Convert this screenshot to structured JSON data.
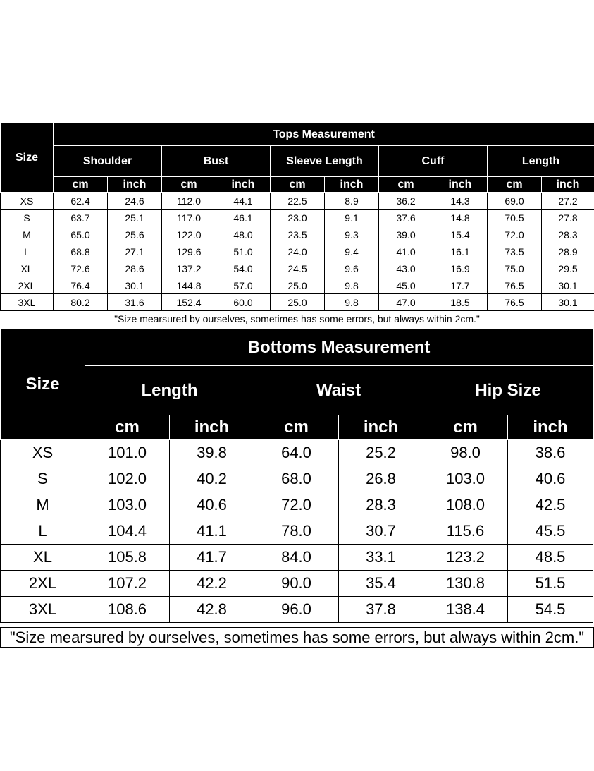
{
  "tops": {
    "title": "Tops Measurement",
    "size_label": "Size",
    "groups": [
      "Shoulder",
      "Bust",
      "Sleeve Length",
      "Cuff",
      "Length"
    ],
    "units": [
      "cm",
      "inch"
    ],
    "rows": [
      {
        "size": "XS",
        "values": [
          "62.4",
          "24.6",
          "112.0",
          "44.1",
          "22.5",
          "8.9",
          "36.2",
          "14.3",
          "69.0",
          "27.2"
        ]
      },
      {
        "size": "S",
        "values": [
          "63.7",
          "25.1",
          "117.0",
          "46.1",
          "23.0",
          "9.1",
          "37.6",
          "14.8",
          "70.5",
          "27.8"
        ]
      },
      {
        "size": "M",
        "values": [
          "65.0",
          "25.6",
          "122.0",
          "48.0",
          "23.5",
          "9.3",
          "39.0",
          "15.4",
          "72.0",
          "28.3"
        ]
      },
      {
        "size": "L",
        "values": [
          "68.8",
          "27.1",
          "129.6",
          "51.0",
          "24.0",
          "9.4",
          "41.0",
          "16.1",
          "73.5",
          "28.9"
        ]
      },
      {
        "size": "XL",
        "values": [
          "72.6",
          "28.6",
          "137.2",
          "54.0",
          "24.5",
          "9.6",
          "43.0",
          "16.9",
          "75.0",
          "29.5"
        ]
      },
      {
        "size": "2XL",
        "values": [
          "76.4",
          "30.1",
          "144.8",
          "57.0",
          "25.0",
          "9.8",
          "45.0",
          "17.7",
          "76.5",
          "30.1"
        ]
      },
      {
        "size": "3XL",
        "values": [
          "80.2",
          "31.6",
          "152.4",
          "60.0",
          "25.0",
          "9.8",
          "47.0",
          "18.5",
          "76.5",
          "30.1"
        ]
      }
    ],
    "note": "\"Size mearsured by ourselves, sometimes has some errors, but always within 2cm.\""
  },
  "bottoms": {
    "title": "Bottoms Measurement",
    "size_label": "Size",
    "groups": [
      "Length",
      "Waist",
      "Hip Size"
    ],
    "units": [
      "cm",
      "inch"
    ],
    "rows": [
      {
        "size": "XS",
        "values": [
          "101.0",
          "39.8",
          "64.0",
          "25.2",
          "98.0",
          "38.6"
        ]
      },
      {
        "size": "S",
        "values": [
          "102.0",
          "40.2",
          "68.0",
          "26.8",
          "103.0",
          "40.6"
        ]
      },
      {
        "size": "M",
        "values": [
          "103.0",
          "40.6",
          "72.0",
          "28.3",
          "108.0",
          "42.5"
        ]
      },
      {
        "size": "L",
        "values": [
          "104.4",
          "41.1",
          "78.0",
          "30.7",
          "115.6",
          "45.5"
        ]
      },
      {
        "size": "XL",
        "values": [
          "105.8",
          "41.7",
          "84.0",
          "33.1",
          "123.2",
          "48.5"
        ]
      },
      {
        "size": "2XL",
        "values": [
          "107.2",
          "42.2",
          "90.0",
          "35.4",
          "130.8",
          "51.5"
        ]
      },
      {
        "size": "3XL",
        "values": [
          "108.6",
          "42.8",
          "96.0",
          "37.8",
          "138.4",
          "54.5"
        ]
      }
    ],
    "note": "\"Size mearsured by ourselves, sometimes has some errors, but always within 2cm.\""
  }
}
